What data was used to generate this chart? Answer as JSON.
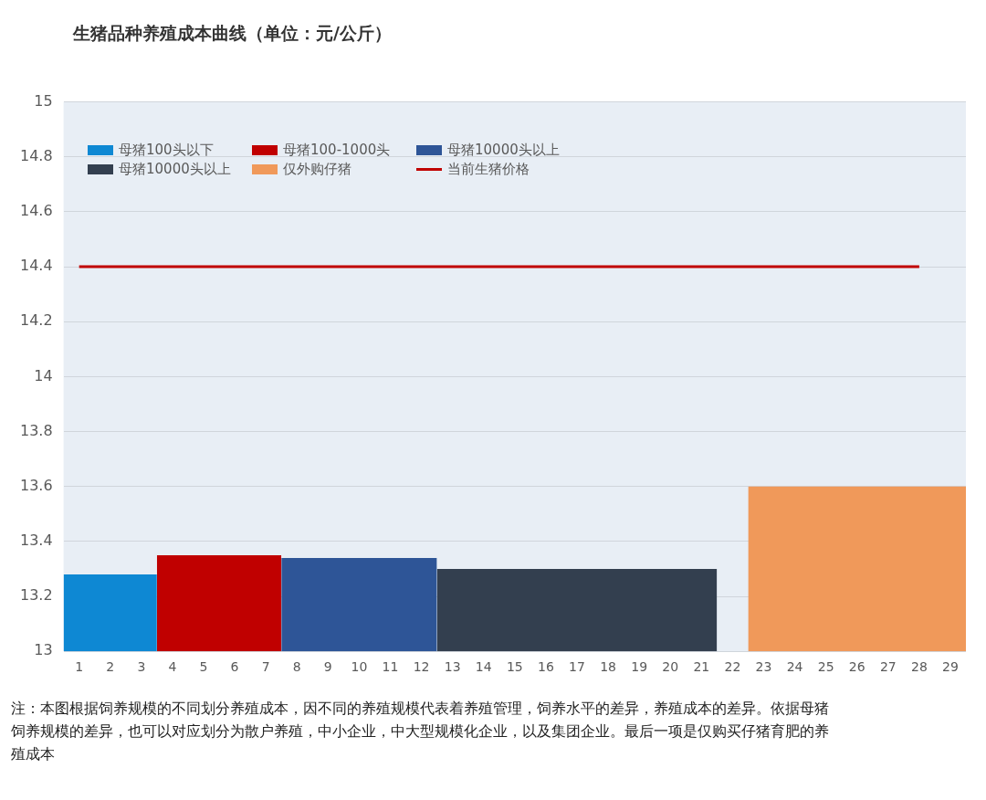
{
  "chart_data": {
    "type": "area",
    "title": "生猪品种养殖成本曲线（单位：元/公斤）",
    "series": [
      {
        "name": "母猪100头以下",
        "color": "#0e88d3",
        "x": [
          0.5,
          3.5
        ],
        "values": [
          13.28,
          13.28
        ]
      },
      {
        "name": "母猪100-1000头",
        "color": "#c00000",
        "x": [
          3.5,
          7.5
        ],
        "values": [
          13.35,
          13.35
        ]
      },
      {
        "name": "母猪10000头以上",
        "color": "#2e5597",
        "x": [
          7.5,
          12.5
        ],
        "values": [
          13.34,
          13.34
        ]
      },
      {
        "name": "母猪10000头以上",
        "color": "#333f4f",
        "x": [
          12.5,
          21.5
        ],
        "values": [
          13.3,
          13.3
        ]
      },
      {
        "name": "仅外购仔猪",
        "color": "#f0995a",
        "x": [
          22.5,
          29.5
        ],
        "values": [
          13.6,
          13.6
        ]
      },
      {
        "name": "当前生猪价格",
        "type": "line",
        "color": "#c00000",
        "x": [
          1,
          28
        ],
        "values": [
          14.4,
          14.4
        ]
      }
    ],
    "xlim": [
      0.5,
      29.5
    ],
    "xticks": [
      1,
      2,
      3,
      4,
      5,
      6,
      7,
      8,
      9,
      10,
      11,
      12,
      13,
      14,
      15,
      16,
      17,
      18,
      19,
      20,
      21,
      22,
      23,
      24,
      25,
      26,
      27,
      28,
      29
    ],
    "ylim": [
      13,
      15
    ],
    "yticks": [
      13,
      13.2,
      13.4,
      13.6,
      13.8,
      14,
      14.2,
      14.4,
      14.6,
      14.8,
      15
    ],
    "grid": "y",
    "legend": "top left",
    "marker": "none",
    "line_style": "solid",
    "annotations": [
      "注：本图根据饲养规模的不同划分养殖成本，因不同的养殖规模代表着养殖管理，饲养水平的差异，养殖成本的差异。依据母猪饲养规模的差异，也可以对应划分为散户养殖，中小企业，中大型规模化企业，以及集团企业。最后一项是仅购买仔猪育肥的养殖成本"
    ]
  }
}
